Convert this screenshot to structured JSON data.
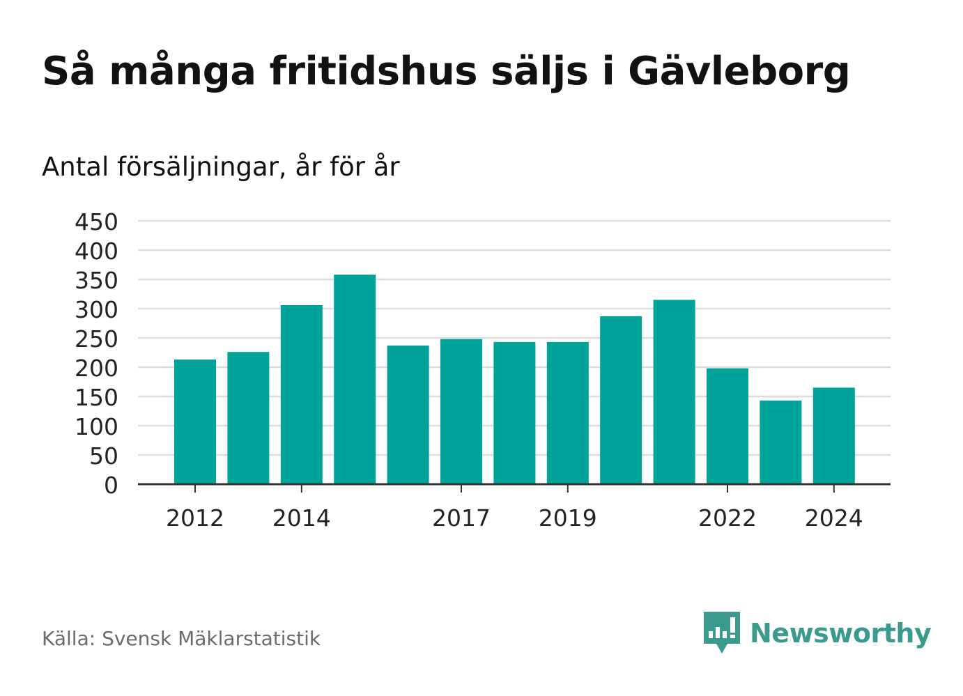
{
  "title": "Så många fritidshus säljs i Gävleborg",
  "subtitle": "Antal försäljningar, år för år",
  "source": "Källa: Svensk Mäklarstatistik",
  "brand": {
    "name": "Newsworthy",
    "color": "#3a9a8e",
    "icon": "speech-bubble-bar-chart-icon"
  },
  "chart_data": {
    "type": "bar",
    "x": [
      2012,
      2013,
      2014,
      2015,
      2016,
      2017,
      2018,
      2019,
      2020,
      2021,
      2022,
      2023,
      2024
    ],
    "values": [
      213,
      226,
      306,
      358,
      237,
      248,
      243,
      243,
      287,
      315,
      198,
      143,
      165
    ],
    "x_tick_labels": [
      "2012",
      "2014",
      "2017",
      "2019",
      "2022",
      "2024"
    ],
    "y_ticks": [
      0,
      50,
      100,
      150,
      200,
      250,
      300,
      350,
      400,
      450
    ],
    "ylim": [
      0,
      450
    ],
    "grid": true,
    "bar_color": "#00a39a"
  }
}
